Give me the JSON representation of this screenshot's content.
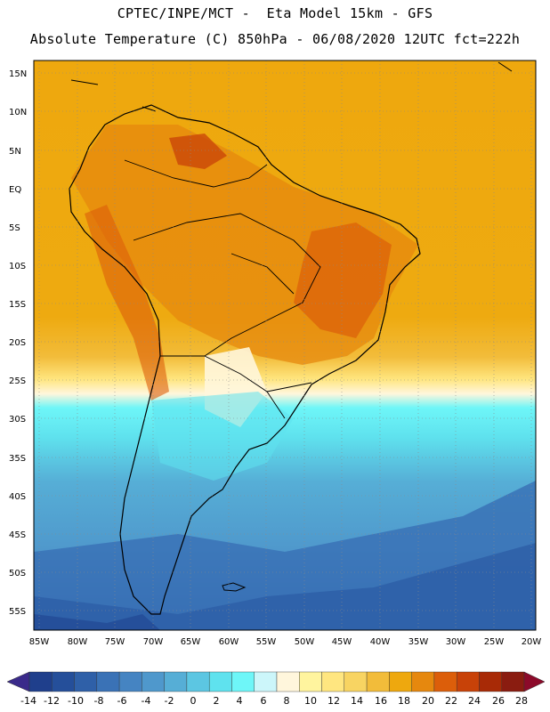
{
  "header": {
    "line1": "CPTEC/INPE/MCT -  Eta Model 15km - GFS",
    "line2": "Absolute Temperature (C) 850hPa - 06/08/2020 12UTC fct=222h"
  },
  "map": {
    "lat_labels": [
      "15N",
      "10N",
      "5N",
      "EQ",
      "5S",
      "10S",
      "15S",
      "20S",
      "25S",
      "30S",
      "35S",
      "40S",
      "45S",
      "50S",
      "55S"
    ],
    "lon_labels": [
      "85W",
      "80W",
      "75W",
      "70W",
      "65W",
      "60W",
      "55W",
      "50W",
      "45W",
      "40W",
      "35W",
      "30W",
      "25W",
      "20W"
    ]
  },
  "colorbar": {
    "labels": [
      "-14",
      "-12",
      "-10",
      "-8",
      "-6",
      "-4",
      "-2",
      "0",
      "2",
      "4",
      "6",
      "8",
      "10",
      "12",
      "14",
      "16",
      "18",
      "20",
      "22",
      "24",
      "26",
      "28"
    ],
    "left_arrow_color": "#3a2a8a",
    "right_arrow_color": "#8c0a2a",
    "colors": [
      "#1f3f8c",
      "#254f9a",
      "#2f60a8",
      "#3a72b6",
      "#4584c2",
      "#4f98cc",
      "#56aed6",
      "#5cc6e2",
      "#5fe2ee",
      "#6ef6f8",
      "#ccf6fa",
      "#fff6dc",
      "#fff49e",
      "#ffe680",
      "#f8d462",
      "#f2bc3a",
      "#eea80e",
      "#e6880e",
      "#dc5e0a",
      "#c84208",
      "#a82a06",
      "#8a1c10"
    ]
  }
}
